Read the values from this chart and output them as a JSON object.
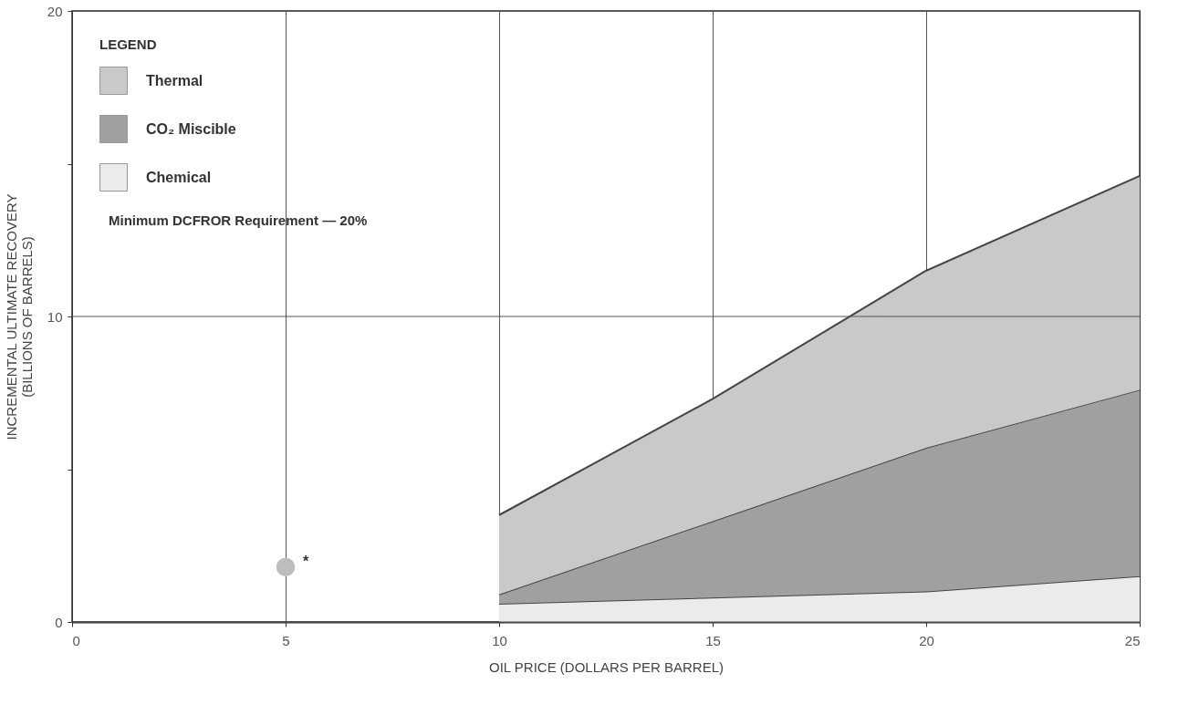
{
  "chart_data": {
    "type": "area",
    "stacked": true,
    "xlabel": "OIL PRICE (DOLLARS PER BARREL)",
    "ylabel": "INCREMENTAL ULTIMATE RECOVERY\n(BILLIONS OF BARRELS)",
    "legend_title": "LEGEND",
    "legend": "top left",
    "x": [
      10,
      15,
      20,
      25
    ],
    "series": [
      {
        "name": "Chemical",
        "color": "#ebebeb",
        "values": [
          0.6,
          0.8,
          1.0,
          1.5
        ]
      },
      {
        "name": "CO₂ Miscible",
        "color": "#a0a0a0",
        "values": [
          0.3,
          2.5,
          4.7,
          6.1
        ]
      },
      {
        "name": "Thermal",
        "color": "#c9c9c9",
        "values": [
          2.6,
          4.0,
          5.8,
          7.0
        ]
      },
      {
        "type": "scatter",
        "color": "#bdbdbd",
        "x": [
          5
        ],
        "values": [
          1.8
        ],
        "marker": "circle"
      }
    ],
    "xlim": [
      0,
      25
    ],
    "xticks": [
      0,
      5,
      10,
      15,
      20,
      25
    ],
    "ylim": [
      0,
      20
    ],
    "yticks": [
      0,
      {
        "value": 5,
        "label": null
      },
      10,
      {
        "value": 15,
        "label": null
      },
      20
    ],
    "grid": true,
    "annotations": [
      "Minimum DCFROR Requirement — 20%",
      "*"
    ]
  }
}
